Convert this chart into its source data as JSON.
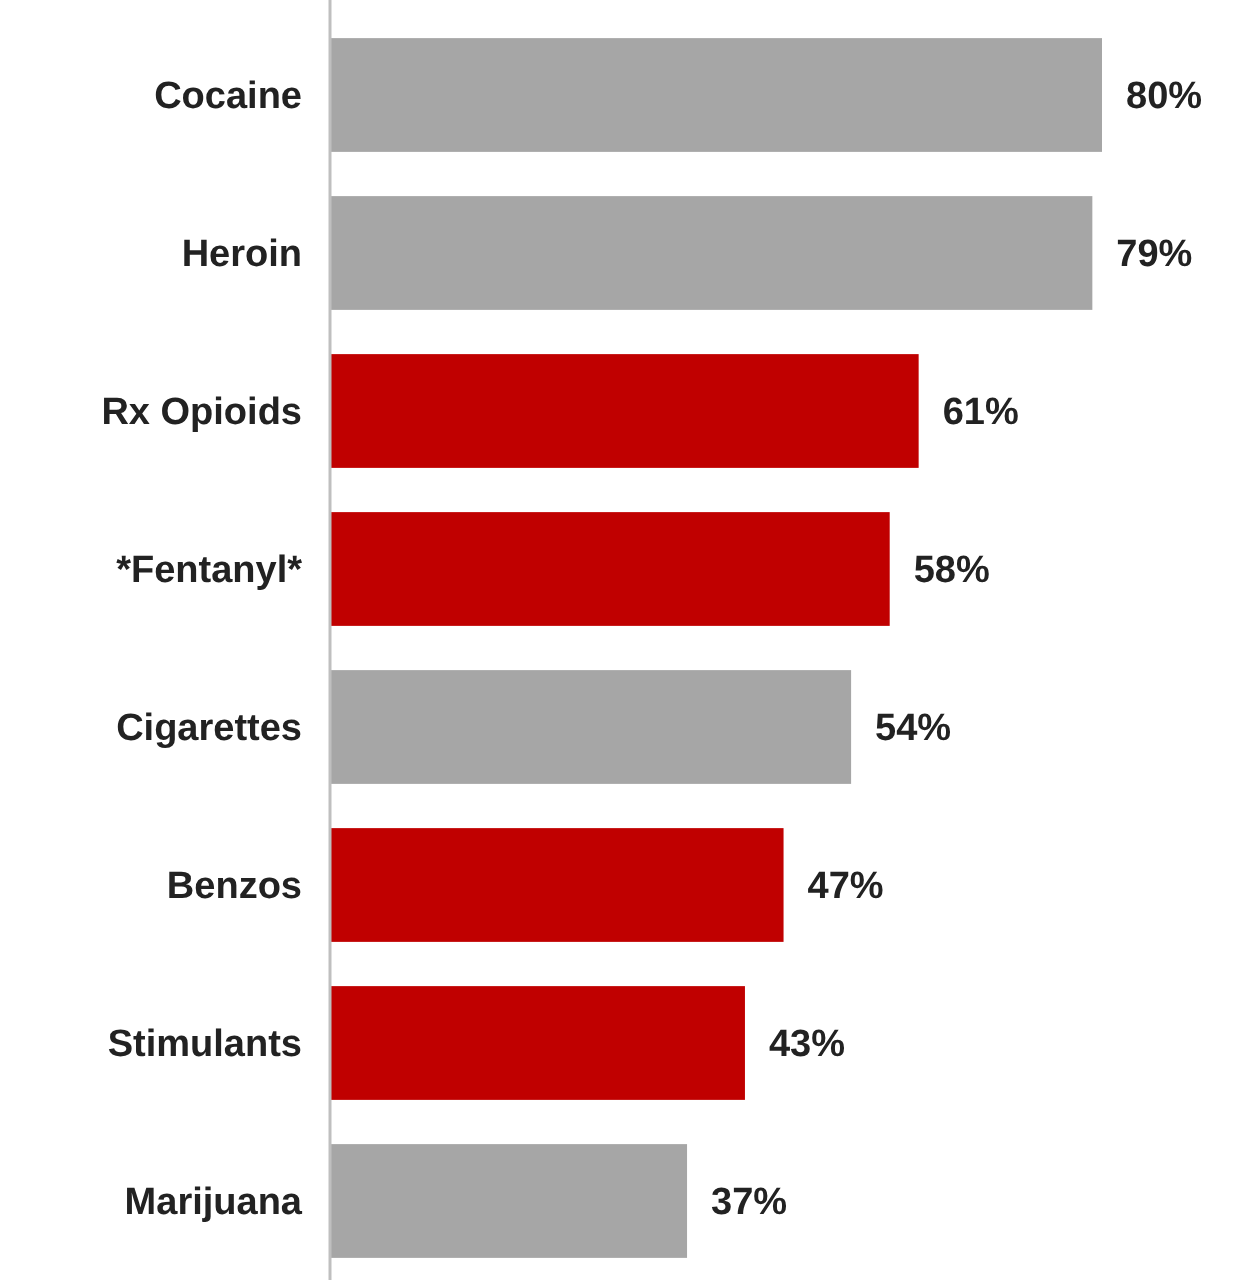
{
  "chart_data": {
    "type": "bar",
    "orientation": "horizontal",
    "categories": [
      "Cocaine",
      "Heroin",
      "Rx Opioids",
      "*Fentanyl*",
      "Cigarettes",
      "Benzos",
      "Stimulants",
      "Marijuana"
    ],
    "values": [
      80,
      79,
      61,
      58,
      54,
      47,
      43,
      37
    ],
    "value_labels": [
      "80%",
      "79%",
      "61%",
      "58%",
      "54%",
      "47%",
      "43%",
      "37%"
    ],
    "colors": [
      "#a6a6a6",
      "#a6a6a6",
      "#c00000",
      "#c00000",
      "#a6a6a6",
      "#c00000",
      "#c00000",
      "#a6a6a6"
    ]
  }
}
